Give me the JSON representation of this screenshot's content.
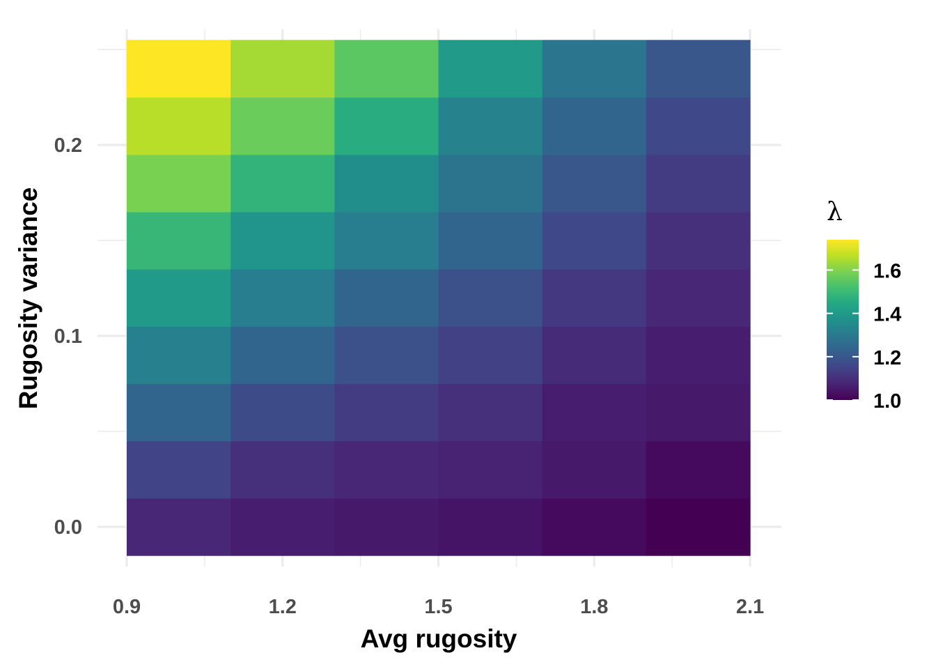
{
  "chart_data": {
    "type": "heatmap",
    "xlabel": "Avg rugosity",
    "ylabel": "Rugosity variance",
    "x_ticks": [
      "0.9",
      "1.2",
      "1.5",
      "1.8",
      "2.1"
    ],
    "y_ticks": [
      "0.0",
      "0.1",
      "0.2"
    ],
    "xlim": [
      0.9,
      2.1
    ],
    "ylim": [
      -0.015,
      0.255
    ],
    "x_centers": [
      1.0,
      1.2,
      1.4,
      1.6,
      1.8,
      2.0
    ],
    "y_centers": [
      0.0,
      0.03,
      0.06,
      0.09,
      0.12,
      0.15,
      0.18,
      0.21,
      0.24
    ],
    "values": [
      [
        1.08,
        1.06,
        1.05,
        1.04,
        1.02,
        1.0
      ],
      [
        1.15,
        1.1,
        1.08,
        1.07,
        1.05,
        1.02
      ],
      [
        1.24,
        1.17,
        1.13,
        1.1,
        1.06,
        1.05
      ],
      [
        1.32,
        1.24,
        1.18,
        1.14,
        1.09,
        1.06
      ],
      [
        1.4,
        1.31,
        1.24,
        1.18,
        1.12,
        1.08
      ],
      [
        1.49,
        1.38,
        1.31,
        1.24,
        1.16,
        1.1
      ],
      [
        1.59,
        1.48,
        1.36,
        1.28,
        1.2,
        1.13
      ],
      [
        1.66,
        1.57,
        1.46,
        1.33,
        1.24,
        1.16
      ],
      [
        1.74,
        1.64,
        1.55,
        1.4,
        1.29,
        1.2
      ]
    ],
    "colorbar": {
      "title": "λ",
      "ticks": [
        "1.0",
        "1.2",
        "1.4",
        "1.6"
      ],
      "range": [
        1.0,
        1.74
      ],
      "colormap": "viridis"
    },
    "grid": true,
    "legend_position": "right"
  }
}
